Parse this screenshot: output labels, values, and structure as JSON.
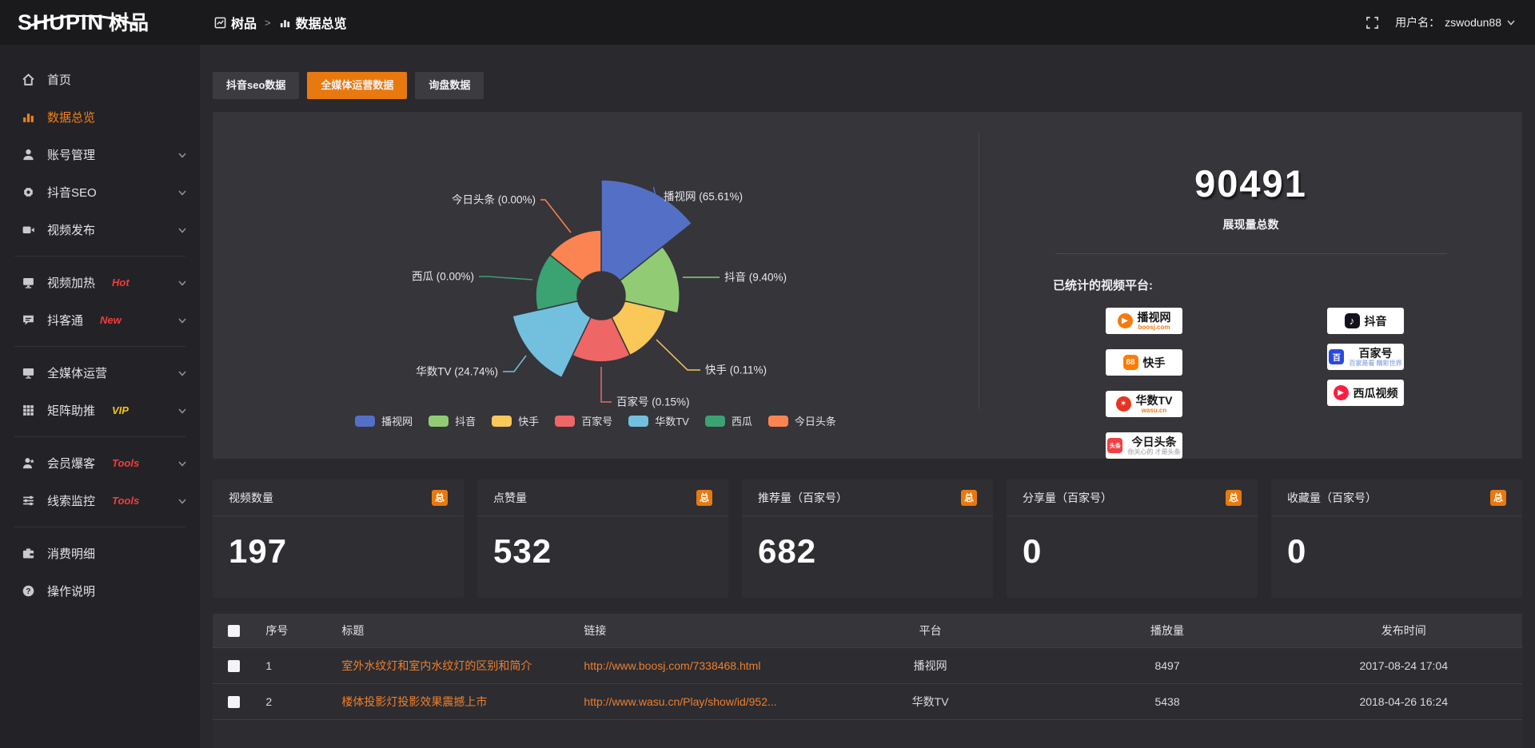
{
  "brand": {
    "logo_text": "SHUPIN",
    "logo_cjk": "树品"
  },
  "breadcrumb": {
    "root": "树品",
    "separator": ">",
    "current": "数据总览"
  },
  "user": {
    "label": "用户名：",
    "name": "zswodun88"
  },
  "sidebar": {
    "items": [
      {
        "label": "首页",
        "icon": "home-icon"
      },
      {
        "label": "数据总览",
        "icon": "bar-chart-icon",
        "active": true
      },
      {
        "label": "账号管理",
        "icon": "user-icon",
        "expandable": true
      },
      {
        "label": "抖音SEO",
        "icon": "gear-icon",
        "expandable": true
      },
      {
        "label": "视频发布",
        "icon": "video-icon",
        "expandable": true
      },
      {
        "divider": true
      },
      {
        "label": "视频加热",
        "icon": "heat-icon",
        "tag": "Hot",
        "tag_color": "#f23c3c",
        "expandable": true
      },
      {
        "label": "抖客通",
        "icon": "chat-icon",
        "tag": "New",
        "tag_color": "#f23c3c",
        "expandable": true
      },
      {
        "divider": true
      },
      {
        "label": "全媒体运营",
        "icon": "monitor-icon",
        "expandable": true
      },
      {
        "label": "矩阵助推",
        "icon": "grid-icon",
        "tag": "VIP",
        "tag_color": "#f2c41d",
        "expandable": true
      },
      {
        "divider": true
      },
      {
        "label": "会员爆客",
        "icon": "member-icon",
        "tag": "Tools",
        "tag_color": "#f23c3c",
        "expandable": true
      },
      {
        "label": "线索监控",
        "icon": "sliders-icon",
        "tag": "Tools",
        "tag_color": "#f23c3c",
        "expandable": true
      },
      {
        "divider": true
      },
      {
        "label": "消费明细",
        "icon": "wallet-icon"
      },
      {
        "label": "操作说明",
        "icon": "help-icon"
      }
    ]
  },
  "tabs": [
    {
      "label": "抖音seo数据",
      "active": false
    },
    {
      "label": "全媒体运营数据",
      "active": true
    },
    {
      "label": "询盘数据",
      "active": false
    }
  ],
  "chart_data": {
    "type": "pie",
    "style": "rose",
    "title": "",
    "legend_position": "bottom",
    "series": [
      {
        "name": "播视网",
        "value_pct": 65.61,
        "label": "播视网 (65.61%)",
        "color": "#5470c6"
      },
      {
        "name": "抖音",
        "value_pct": 9.4,
        "label": "抖音 (9.40%)",
        "color": "#91cc75"
      },
      {
        "name": "快手",
        "value_pct": 0.11,
        "label": "快手 (0.11%)",
        "color": "#fac858"
      },
      {
        "name": "百家号",
        "value_pct": 0.15,
        "label": "百家号 (0.15%)",
        "color": "#ee6666"
      },
      {
        "name": "华数TV",
        "value_pct": 24.74,
        "label": "华数TV (24.74%)",
        "color": "#73c0de"
      },
      {
        "name": "西瓜",
        "value_pct": 0.0,
        "label": "西瓜 (0.00%)",
        "color": "#3ba272"
      },
      {
        "name": "今日头条",
        "value_pct": 0.0,
        "label": "今日头条 (0.00%)",
        "color": "#fc8452"
      }
    ],
    "legend": [
      "播视网",
      "抖音",
      "快手",
      "百家号",
      "华数TV",
      "西瓜",
      "今日头条"
    ]
  },
  "summary": {
    "total_value": "90491",
    "total_label": "展现量总数",
    "platforms_label": "已统计的视频平台:",
    "platform_columns": {
      "left": [
        {
          "name": "播视网",
          "sub": "boosj.com",
          "sub_color": "#f07a12",
          "icon": "boosj-logo-icon"
        },
        {
          "name": "快手",
          "icon": "kuaishou-logo-icon"
        },
        {
          "name": "华数TV",
          "sub": "wasu.cn",
          "sub_color": "#f07a12",
          "icon": "wasu-logo-icon"
        },
        {
          "name": "今日头条",
          "sub": "你关心的 才是头条",
          "sub_color": "#b9b9bd",
          "icon": "toutiao-logo-icon"
        }
      ],
      "right": [
        {
          "name": "抖音",
          "icon": "douyin-logo-icon"
        },
        {
          "name": "百家号",
          "sub": "百家是看 精彩世界",
          "sub_color": "#9db4e8",
          "icon": "baijiahao-logo-icon"
        },
        {
          "name": "西瓜视频",
          "icon": "xigua-logo-icon"
        }
      ]
    }
  },
  "stat_cards": [
    {
      "title": "视频数量",
      "badge": "总",
      "value": "197"
    },
    {
      "title": "点赞量",
      "badge": "总",
      "value": "532"
    },
    {
      "title": "推荐量（百家号）",
      "badge": "总",
      "value": "682"
    },
    {
      "title": "分享量（百家号）",
      "badge": "总",
      "value": "0"
    },
    {
      "title": "收藏量（百家号）",
      "badge": "总",
      "value": "0"
    }
  ],
  "table": {
    "columns": [
      "序号",
      "标题",
      "链接",
      "平台",
      "播放量",
      "发布时间"
    ],
    "rows": [
      {
        "index": "1",
        "title": "室外水纹灯和室内水纹灯的区别和简介",
        "link": "http://www.boosj.com/7338468.html",
        "platform": "播视网",
        "plays": "8497",
        "published": "2017-08-24 17:04"
      },
      {
        "index": "2",
        "title": "楼体投影灯投影效果震撼上市",
        "link": "http://www.wasu.cn/Play/show/id/952...",
        "platform": "华数TV",
        "plays": "5438",
        "published": "2018-04-26 16:24"
      }
    ]
  },
  "colors": {
    "accent": "#e8790f",
    "link": "#ee7f2d",
    "panel_bg": "#35353a"
  }
}
